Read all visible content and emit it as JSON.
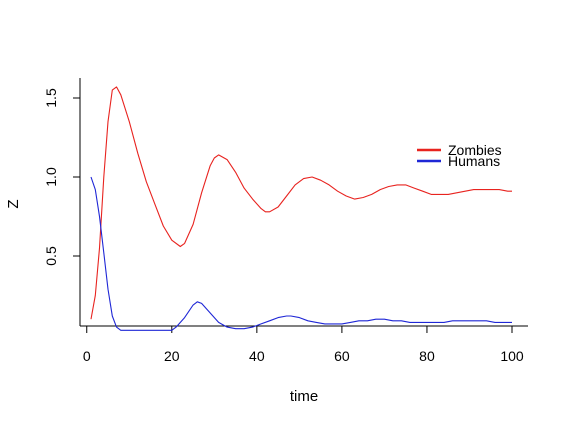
{
  "chart_data": {
    "type": "line",
    "title": "",
    "xlabel": "time",
    "ylabel": "Z",
    "xlim": [
      0,
      100
    ],
    "ylim": [
      0.03,
      1.6
    ],
    "xticks": [
      0,
      20,
      40,
      60,
      80,
      100
    ],
    "yticks": [
      0.5,
      1.0,
      1.5
    ],
    "ytick_labels": [
      "0.5",
      "1.0",
      "1.5"
    ],
    "grid": false,
    "legend_position": "top-right",
    "series": [
      {
        "name": "Zombies",
        "color": "#e8231f",
        "points": [
          [
            1,
            0.1
          ],
          [
            2,
            0.25
          ],
          [
            3,
            0.55
          ],
          [
            4,
            1.0
          ],
          [
            5,
            1.35
          ],
          [
            6,
            1.55
          ],
          [
            7,
            1.57
          ],
          [
            8,
            1.52
          ],
          [
            10,
            1.35
          ],
          [
            12,
            1.15
          ],
          [
            14,
            0.97
          ],
          [
            16,
            0.83
          ],
          [
            18,
            0.69
          ],
          [
            20,
            0.6
          ],
          [
            22,
            0.56
          ],
          [
            23,
            0.58
          ],
          [
            25,
            0.7
          ],
          [
            27,
            0.9
          ],
          [
            29,
            1.07
          ],
          [
            30,
            1.12
          ],
          [
            31,
            1.14
          ],
          [
            33,
            1.11
          ],
          [
            35,
            1.03
          ],
          [
            37,
            0.93
          ],
          [
            39,
            0.86
          ],
          [
            41,
            0.8
          ],
          [
            42,
            0.78
          ],
          [
            43,
            0.78
          ],
          [
            45,
            0.81
          ],
          [
            47,
            0.88
          ],
          [
            49,
            0.95
          ],
          [
            51,
            0.99
          ],
          [
            53,
            1.0
          ],
          [
            55,
            0.98
          ],
          [
            57,
            0.95
          ],
          [
            59,
            0.91
          ],
          [
            61,
            0.88
          ],
          [
            63,
            0.86
          ],
          [
            65,
            0.87
          ],
          [
            67,
            0.89
          ],
          [
            69,
            0.92
          ],
          [
            71,
            0.94
          ],
          [
            73,
            0.95
          ],
          [
            75,
            0.95
          ],
          [
            77,
            0.93
          ],
          [
            79,
            0.91
          ],
          [
            81,
            0.89
          ],
          [
            83,
            0.89
          ],
          [
            85,
            0.89
          ],
          [
            87,
            0.9
          ],
          [
            89,
            0.91
          ],
          [
            91,
            0.92
          ],
          [
            93,
            0.92
          ],
          [
            95,
            0.92
          ],
          [
            97,
            0.92
          ],
          [
            99,
            0.91
          ],
          [
            100,
            0.91
          ]
        ]
      },
      {
        "name": "Humans",
        "color": "#1f27d6",
        "points": [
          [
            1,
            1.0
          ],
          [
            2,
            0.92
          ],
          [
            3,
            0.75
          ],
          [
            4,
            0.52
          ],
          [
            5,
            0.29
          ],
          [
            6,
            0.12
          ],
          [
            7,
            0.05
          ],
          [
            8,
            0.03
          ],
          [
            20,
            0.03
          ],
          [
            21,
            0.05
          ],
          [
            23,
            0.11
          ],
          [
            25,
            0.19
          ],
          [
            26,
            0.21
          ],
          [
            27,
            0.2
          ],
          [
            29,
            0.14
          ],
          [
            31,
            0.08
          ],
          [
            33,
            0.05
          ],
          [
            35,
            0.04
          ],
          [
            37,
            0.04
          ],
          [
            39,
            0.05
          ],
          [
            41,
            0.07
          ],
          [
            43,
            0.09
          ],
          [
            45,
            0.11
          ],
          [
            47,
            0.12
          ],
          [
            48,
            0.12
          ],
          [
            50,
            0.11
          ],
          [
            52,
            0.09
          ],
          [
            54,
            0.08
          ],
          [
            56,
            0.07
          ],
          [
            58,
            0.07
          ],
          [
            60,
            0.07
          ],
          [
            62,
            0.08
          ],
          [
            64,
            0.09
          ],
          [
            66,
            0.09
          ],
          [
            68,
            0.1
          ],
          [
            70,
            0.1
          ],
          [
            72,
            0.09
          ],
          [
            74,
            0.09
          ],
          [
            76,
            0.08
          ],
          [
            78,
            0.08
          ],
          [
            80,
            0.08
          ],
          [
            82,
            0.08
          ],
          [
            84,
            0.08
          ],
          [
            86,
            0.09
          ],
          [
            88,
            0.09
          ],
          [
            90,
            0.09
          ],
          [
            92,
            0.09
          ],
          [
            94,
            0.09
          ],
          [
            96,
            0.08
          ],
          [
            98,
            0.08
          ],
          [
            100,
            0.08
          ]
        ]
      }
    ]
  }
}
